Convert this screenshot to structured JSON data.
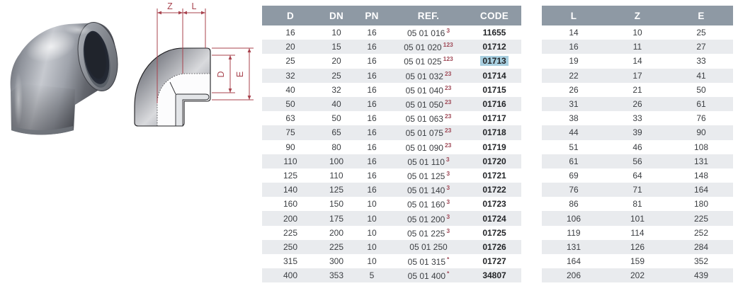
{
  "product": {
    "name": "90 degree elbow PVC fitting",
    "views": [
      "photo",
      "technical-drawing"
    ]
  },
  "diagram": {
    "labels": {
      "z": "Z",
      "l": "L",
      "d": "D",
      "e": "E"
    }
  },
  "main_table": {
    "headers": [
      "D",
      "DN",
      "PN",
      "REF.",
      "CODE"
    ],
    "rows": [
      {
        "d": "16",
        "dn": "10",
        "pn": "16",
        "ref": "05 01 016",
        "ref_note": "3",
        "code": "11655",
        "highlight": false
      },
      {
        "d": "20",
        "dn": "15",
        "pn": "16",
        "ref": "05 01 020",
        "ref_note": "123",
        "code": "01712",
        "highlight": false
      },
      {
        "d": "25",
        "dn": "20",
        "pn": "16",
        "ref": "05 01 025",
        "ref_note": "123",
        "code": "01713",
        "highlight": true
      },
      {
        "d": "32",
        "dn": "25",
        "pn": "16",
        "ref": "05 01 032",
        "ref_note": "23",
        "code": "01714",
        "highlight": false
      },
      {
        "d": "40",
        "dn": "32",
        "pn": "16",
        "ref": "05 01 040",
        "ref_note": "23",
        "code": "01715",
        "highlight": false
      },
      {
        "d": "50",
        "dn": "40",
        "pn": "16",
        "ref": "05 01 050",
        "ref_note": "23",
        "code": "01716",
        "highlight": false
      },
      {
        "d": "63",
        "dn": "50",
        "pn": "16",
        "ref": "05 01 063",
        "ref_note": "23",
        "code": "01717",
        "highlight": false
      },
      {
        "d": "75",
        "dn": "65",
        "pn": "16",
        "ref": "05 01 075",
        "ref_note": "23",
        "code": "01718",
        "highlight": false
      },
      {
        "d": "90",
        "dn": "80",
        "pn": "16",
        "ref": "05 01 090",
        "ref_note": "23",
        "code": "01719",
        "highlight": false
      },
      {
        "d": "110",
        "dn": "100",
        "pn": "16",
        "ref": "05 01 110",
        "ref_note": "3",
        "code": "01720",
        "highlight": false
      },
      {
        "d": "125",
        "dn": "110",
        "pn": "16",
        "ref": "05 01 125",
        "ref_note": "3",
        "code": "01721",
        "highlight": false
      },
      {
        "d": "140",
        "dn": "125",
        "pn": "16",
        "ref": "05 01 140",
        "ref_note": "3",
        "code": "01722",
        "highlight": false
      },
      {
        "d": "160",
        "dn": "150",
        "pn": "10",
        "ref": "05 01 160",
        "ref_note": "3",
        "code": "01723",
        "highlight": false
      },
      {
        "d": "200",
        "dn": "175",
        "pn": "10",
        "ref": "05 01 200",
        "ref_note": "3",
        "code": "01724",
        "highlight": false
      },
      {
        "d": "225",
        "dn": "200",
        "pn": "10",
        "ref": "05 01 225",
        "ref_note": "3",
        "code": "01725",
        "highlight": false
      },
      {
        "d": "250",
        "dn": "225",
        "pn": "10",
        "ref": "05 01 250",
        "ref_note": "",
        "code": "01726",
        "highlight": false
      },
      {
        "d": "315",
        "dn": "300",
        "pn": "10",
        "ref": "05 01 315",
        "ref_note": "*",
        "code": "01727",
        "highlight": false
      },
      {
        "d": "400",
        "dn": "353",
        "pn": "5",
        "ref": "05 01 400",
        "ref_note": "*",
        "code": "34807",
        "highlight": false
      }
    ]
  },
  "dim_table": {
    "headers": [
      "L",
      "Z",
      "E"
    ],
    "rows": [
      {
        "l": "14",
        "z": "10",
        "e": "25"
      },
      {
        "l": "16",
        "z": "11",
        "e": "27"
      },
      {
        "l": "19",
        "z": "14",
        "e": "33"
      },
      {
        "l": "22",
        "z": "17",
        "e": "41"
      },
      {
        "l": "26",
        "z": "21",
        "e": "50"
      },
      {
        "l": "31",
        "z": "26",
        "e": "61"
      },
      {
        "l": "38",
        "z": "33",
        "e": "76"
      },
      {
        "l": "44",
        "z": "39",
        "e": "90"
      },
      {
        "l": "51",
        "z": "46",
        "e": "108"
      },
      {
        "l": "61",
        "z": "56",
        "e": "131"
      },
      {
        "l": "69",
        "z": "64",
        "e": "148"
      },
      {
        "l": "76",
        "z": "71",
        "e": "164"
      },
      {
        "l": "86",
        "z": "81",
        "e": "180"
      },
      {
        "l": "106",
        "z": "101",
        "e": "225"
      },
      {
        "l": "119",
        "z": "114",
        "e": "252"
      },
      {
        "l": "131",
        "z": "126",
        "e": "284"
      },
      {
        "l": "164",
        "z": "159",
        "e": "352"
      },
      {
        "l": "206",
        "z": "202",
        "e": "439"
      }
    ]
  },
  "colors": {
    "header_bg": "#8e99a4",
    "row_alt": "#e9ebee",
    "accent_red": "#a8434e",
    "selection_highlight": "#a8cfe0",
    "note_red": "#a04a58"
  }
}
